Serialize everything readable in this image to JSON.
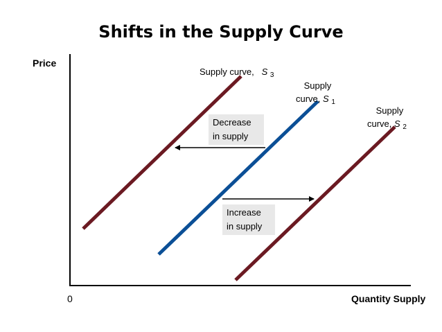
{
  "title": "Shifts in the Supply Curve",
  "axes": {
    "y_label": "Price",
    "x_label": "Quantity Supply",
    "origin": "0"
  },
  "curves": [
    {
      "id": "S3",
      "text": "Supply curve,",
      "symbol": "S",
      "subscript": "3",
      "color": "#6b1a22"
    },
    {
      "id": "S1",
      "line1": "Supply",
      "line2": "curve,",
      "symbol": "S",
      "subscript": "1",
      "color": "#0b4f96"
    },
    {
      "id": "S2",
      "line1": "Supply",
      "line2": "curve,",
      "symbol": "S",
      "subscript": "2",
      "color": "#6b1a22"
    }
  ],
  "shifts": {
    "decrease": {
      "line1": "Decrease",
      "line2": "in supply",
      "direction": "left"
    },
    "increase": {
      "line1": "Increase",
      "line2": "in supply",
      "direction": "right"
    }
  },
  "colors": {
    "shifted_curve": "#6b1a22",
    "original_curve": "#0b4f96",
    "axis": "#000000",
    "box_background": "#e8e8e8"
  }
}
